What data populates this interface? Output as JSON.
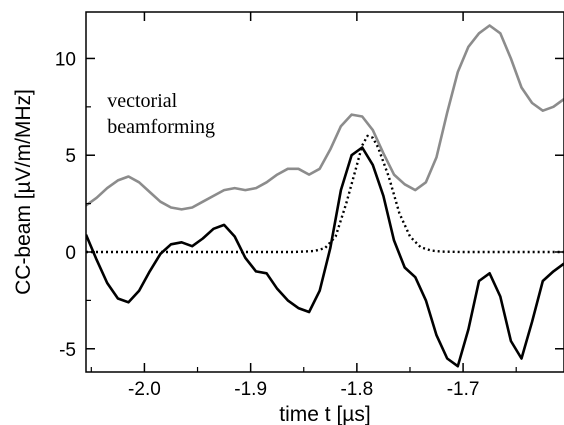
{
  "chart_data": {
    "type": "line",
    "xlabel": "time t [µs]",
    "ylabel": "CC-beam [µV/m/MHz]",
    "xlim": [
      -2.055,
      -1.605
    ],
    "ylim": [
      -6.2,
      12.4
    ],
    "x_ticks": [
      -2.0,
      -1.9,
      -1.8,
      -1.7
    ],
    "x_tick_labels": [
      "-2.0",
      "-1.9",
      "-1.8",
      "-1.7"
    ],
    "y_ticks": [
      -5,
      0,
      5,
      10
    ],
    "y_tick_labels": [
      "-5",
      "0",
      "5",
      "10"
    ],
    "grid": false,
    "legend": "none",
    "annotation": {
      "lines": [
        "vectorial",
        "beamforming"
      ],
      "x": -2.035,
      "y": 7.8
    },
    "series": [
      {
        "style": "gray-solid",
        "color": "#8c8c8c",
        "points": [
          [
            -2.055,
            2.4
          ],
          [
            -2.045,
            2.8
          ],
          [
            -2.035,
            3.3
          ],
          [
            -2.025,
            3.7
          ],
          [
            -2.015,
            3.9
          ],
          [
            -2.005,
            3.6
          ],
          [
            -1.995,
            3.1
          ],
          [
            -1.985,
            2.6
          ],
          [
            -1.975,
            2.3
          ],
          [
            -1.965,
            2.2
          ],
          [
            -1.955,
            2.3
          ],
          [
            -1.945,
            2.6
          ],
          [
            -1.935,
            2.9
          ],
          [
            -1.925,
            3.2
          ],
          [
            -1.915,
            3.3
          ],
          [
            -1.905,
            3.2
          ],
          [
            -1.895,
            3.3
          ],
          [
            -1.885,
            3.6
          ],
          [
            -1.875,
            4.0
          ],
          [
            -1.865,
            4.3
          ],
          [
            -1.855,
            4.3
          ],
          [
            -1.845,
            4.0
          ],
          [
            -1.835,
            4.3
          ],
          [
            -1.825,
            5.3
          ],
          [
            -1.815,
            6.5
          ],
          [
            -1.805,
            7.1
          ],
          [
            -1.795,
            7.0
          ],
          [
            -1.785,
            6.3
          ],
          [
            -1.775,
            5.1
          ],
          [
            -1.765,
            4.0
          ],
          [
            -1.755,
            3.5
          ],
          [
            -1.745,
            3.2
          ],
          [
            -1.735,
            3.6
          ],
          [
            -1.725,
            4.9
          ],
          [
            -1.715,
            7.2
          ],
          [
            -1.705,
            9.3
          ],
          [
            -1.695,
            10.6
          ],
          [
            -1.685,
            11.3
          ],
          [
            -1.675,
            11.7
          ],
          [
            -1.665,
            11.3
          ],
          [
            -1.655,
            10.0
          ],
          [
            -1.645,
            8.5
          ],
          [
            -1.635,
            7.7
          ],
          [
            -1.625,
            7.3
          ],
          [
            -1.615,
            7.5
          ],
          [
            -1.605,
            7.9
          ]
        ]
      },
      {
        "style": "black-solid",
        "color": "#000000",
        "points": [
          [
            -2.055,
            0.9
          ],
          [
            -2.045,
            -0.4
          ],
          [
            -2.035,
            -1.6
          ],
          [
            -2.025,
            -2.4
          ],
          [
            -2.015,
            -2.6
          ],
          [
            -2.005,
            -2.0
          ],
          [
            -1.995,
            -1.0
          ],
          [
            -1.985,
            -0.1
          ],
          [
            -1.975,
            0.4
          ],
          [
            -1.965,
            0.5
          ],
          [
            -1.955,
            0.3
          ],
          [
            -1.945,
            0.7
          ],
          [
            -1.935,
            1.2
          ],
          [
            -1.925,
            1.4
          ],
          [
            -1.915,
            0.8
          ],
          [
            -1.905,
            -0.3
          ],
          [
            -1.895,
            -1.0
          ],
          [
            -1.885,
            -1.1
          ],
          [
            -1.875,
            -1.9
          ],
          [
            -1.865,
            -2.5
          ],
          [
            -1.855,
            -2.9
          ],
          [
            -1.845,
            -3.1
          ],
          [
            -1.835,
            -2.0
          ],
          [
            -1.825,
            0.2
          ],
          [
            -1.815,
            3.2
          ],
          [
            -1.805,
            5.0
          ],
          [
            -1.795,
            5.4
          ],
          [
            -1.785,
            4.5
          ],
          [
            -1.775,
            2.9
          ],
          [
            -1.765,
            0.6
          ],
          [
            -1.755,
            -0.8
          ],
          [
            -1.745,
            -1.3
          ],
          [
            -1.735,
            -2.5
          ],
          [
            -1.725,
            -4.3
          ],
          [
            -1.715,
            -5.5
          ],
          [
            -1.705,
            -5.9
          ],
          [
            -1.695,
            -4.0
          ],
          [
            -1.685,
            -1.5
          ],
          [
            -1.675,
            -1.1
          ],
          [
            -1.665,
            -2.3
          ],
          [
            -1.655,
            -4.6
          ],
          [
            -1.645,
            -5.5
          ],
          [
            -1.635,
            -3.6
          ],
          [
            -1.625,
            -1.5
          ],
          [
            -1.615,
            -1.0
          ],
          [
            -1.605,
            -0.6
          ]
        ]
      },
      {
        "style": "black-dotted",
        "color": "#000000",
        "points": [
          [
            -2.055,
            0.0
          ],
          [
            -2.0,
            0.0
          ],
          [
            -1.95,
            0.0
          ],
          [
            -1.9,
            0.0
          ],
          [
            -1.86,
            0.0
          ],
          [
            -1.84,
            0.05
          ],
          [
            -1.83,
            0.2
          ],
          [
            -1.82,
            0.8
          ],
          [
            -1.81,
            2.5
          ],
          [
            -1.8,
            4.5
          ],
          [
            -1.795,
            5.5
          ],
          [
            -1.79,
            6.0
          ],
          [
            -1.785,
            5.9
          ],
          [
            -1.78,
            5.4
          ],
          [
            -1.77,
            3.9
          ],
          [
            -1.76,
            2.0
          ],
          [
            -1.75,
            0.8
          ],
          [
            -1.74,
            0.25
          ],
          [
            -1.73,
            0.07
          ],
          [
            -1.72,
            0.02
          ],
          [
            -1.7,
            0.0
          ],
          [
            -1.65,
            0.0
          ],
          [
            -1.605,
            0.0
          ]
        ]
      }
    ]
  }
}
